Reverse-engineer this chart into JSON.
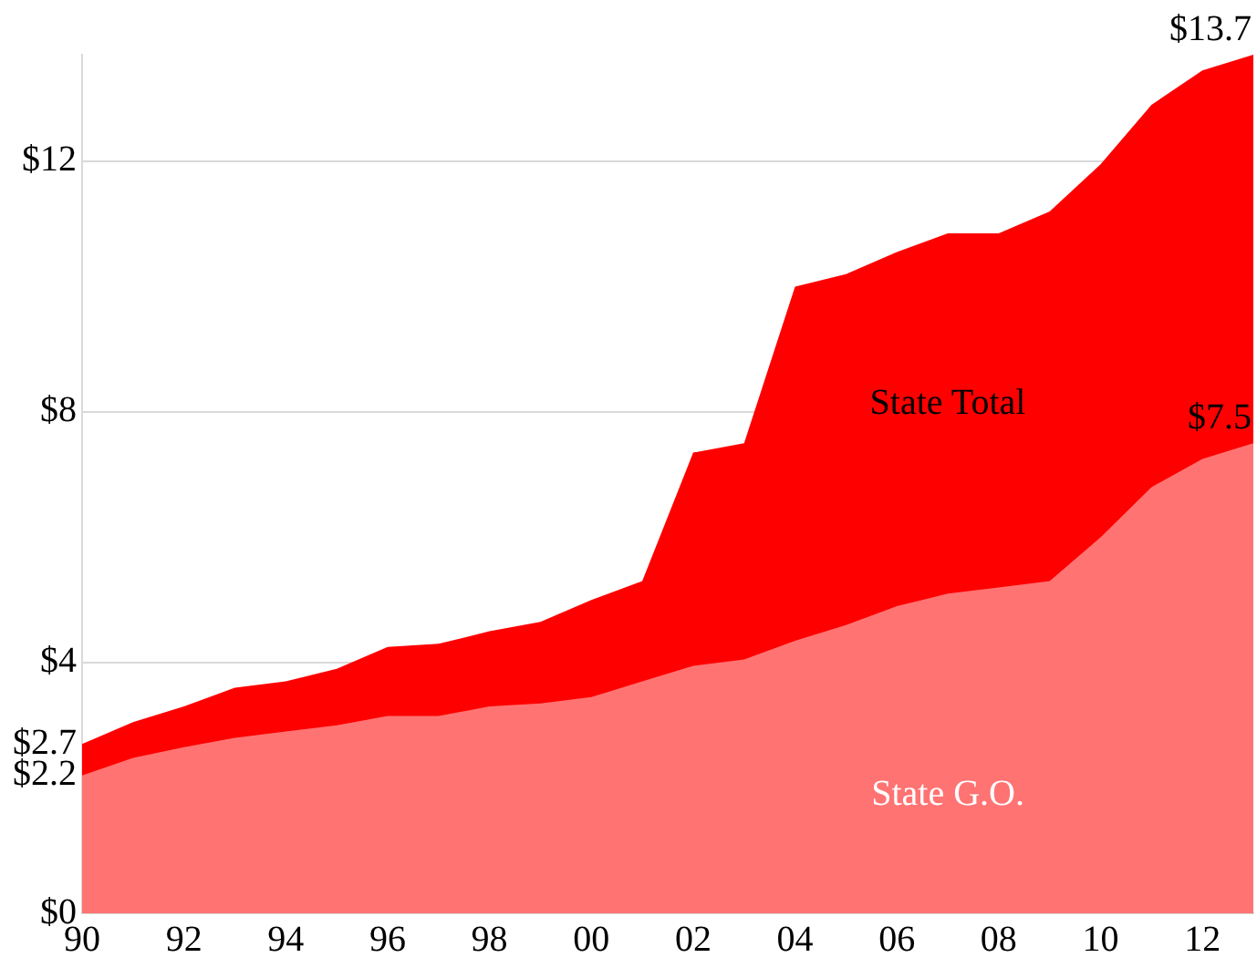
{
  "chart_data": {
    "type": "area",
    "x": [
      1990,
      1991,
      1992,
      1993,
      1994,
      1995,
      1996,
      1997,
      1998,
      1999,
      2000,
      2001,
      2002,
      2003,
      2004,
      2005,
      2006,
      2007,
      2008,
      2009,
      2010,
      2011,
      2012,
      2013
    ],
    "series": [
      {
        "name": "State Total",
        "color": "#ff0000",
        "values": [
          2.7,
          3.05,
          3.3,
          3.6,
          3.7,
          3.9,
          4.25,
          4.3,
          4.5,
          4.65,
          5.0,
          5.3,
          7.35,
          7.5,
          10.0,
          10.2,
          10.55,
          10.85,
          10.85,
          11.2,
          11.95,
          12.9,
          13.45,
          13.7
        ],
        "value_labels": [
          null,
          null,
          null,
          null,
          null,
          null,
          null,
          null,
          null,
          null,
          null,
          null,
          null,
          null,
          null,
          null,
          null,
          null,
          null,
          null,
          null,
          null,
          null,
          "$13.7"
        ]
      },
      {
        "name": "State G.O.",
        "color": "#ff7373",
        "values": [
          2.2,
          2.48,
          2.65,
          2.8,
          2.9,
          3.0,
          3.15,
          3.15,
          3.3,
          3.35,
          3.45,
          3.7,
          3.95,
          4.05,
          4.35,
          4.6,
          4.9,
          5.1,
          5.2,
          5.3,
          6.0,
          6.8,
          7.25,
          7.5
        ],
        "value_labels": [
          null,
          null,
          null,
          null,
          null,
          null,
          null,
          null,
          null,
          null,
          null,
          null,
          null,
          null,
          null,
          null,
          null,
          null,
          null,
          null,
          null,
          null,
          null,
          "$7.5"
        ]
      }
    ],
    "xlim": [
      1990,
      2013
    ],
    "xticks": [
      {
        "value": 1990,
        "label": "90"
      },
      {
        "value": 1992,
        "label": "92"
      },
      {
        "value": 1994,
        "label": "94"
      },
      {
        "value": 1996,
        "label": "96"
      },
      {
        "value": 1998,
        "label": "98"
      },
      {
        "value": 2000,
        "label": "00"
      },
      {
        "value": 2002,
        "label": "02"
      },
      {
        "value": 2004,
        "label": "04"
      },
      {
        "value": 2006,
        "label": "06"
      },
      {
        "value": 2008,
        "label": "08"
      },
      {
        "value": 2010,
        "label": "10"
      },
      {
        "value": 2012,
        "label": "12"
      }
    ],
    "ylim": [
      0,
      13.7
    ],
    "yticks": [
      {
        "value": 0,
        "label": "$0"
      },
      {
        "value": 2.2,
        "label": "$2.2"
      },
      {
        "value": 2.7,
        "label": "$2.7"
      },
      {
        "value": 4,
        "label": "$4"
      },
      {
        "value": 8,
        "label": "$8"
      },
      {
        "value": 12,
        "label": "$12"
      }
    ],
    "grid": "y",
    "legend": false
  }
}
